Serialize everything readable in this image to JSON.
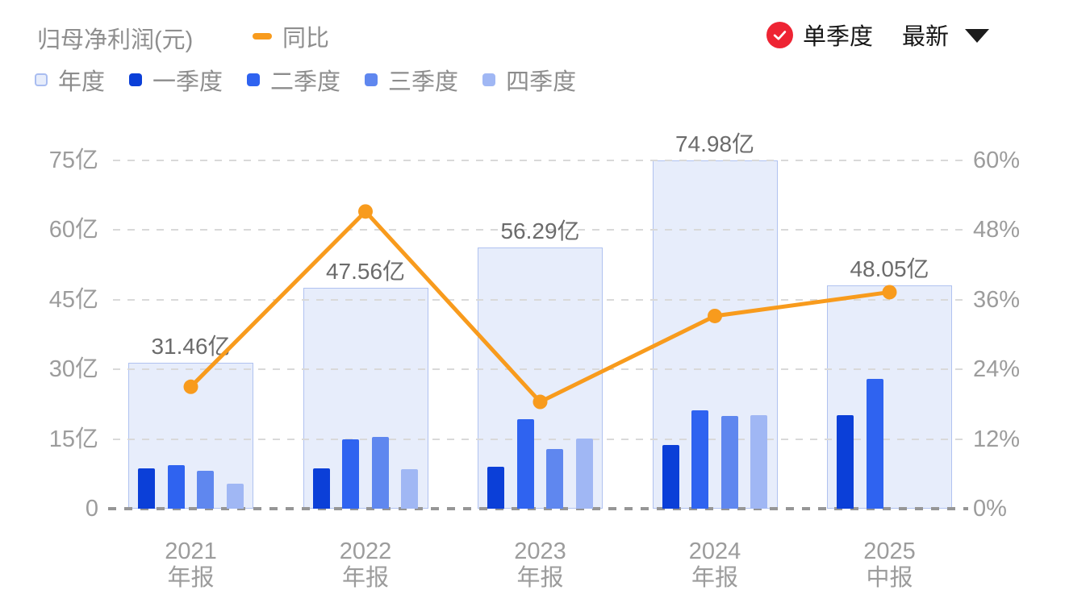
{
  "header": {
    "title": "归母净利润(元)",
    "line_legend": "同比",
    "mode_badge": "单季度",
    "latest": "最新",
    "badge_color": "#ee2433",
    "check_icon": "check-icon",
    "chevron_icon": "chevron-down-icon"
  },
  "legend": {
    "items": [
      {
        "label": "年度",
        "color": "#e7edfb",
        "border": "#a9bdf0"
      },
      {
        "label": "一季度",
        "color": "#0b3fd8",
        "border": null
      },
      {
        "label": "二季度",
        "color": "#2f63f0",
        "border": null
      },
      {
        "label": "三季度",
        "color": "#5f87ef",
        "border": null
      },
      {
        "label": "四季度",
        "color": "#a0b7f4",
        "border": null
      }
    ]
  },
  "chart_data": {
    "type": "bar",
    "title": "归母净利润(元)",
    "categories": [
      {
        "year": "2021",
        "report": "年报"
      },
      {
        "year": "2022",
        "report": "年报"
      },
      {
        "year": "2023",
        "report": "年报"
      },
      {
        "year": "2024",
        "report": "年报"
      },
      {
        "year": "2025",
        "report": "中报"
      }
    ],
    "annual_series": {
      "name": "年度",
      "values_yi": [
        31.46,
        47.56,
        56.29,
        74.98,
        48.05
      ],
      "labels": [
        "31.46亿",
        "47.56亿",
        "56.29亿",
        "74.98亿",
        "48.05亿"
      ],
      "fill": "#e7edfb",
      "border": "#b0c2f0"
    },
    "quarter_series": [
      {
        "name": "一季度",
        "color": "#0b3fd8",
        "values_yi": [
          8.6,
          8.7,
          9.1,
          13.8,
          20.1
        ]
      },
      {
        "name": "二季度",
        "color": "#2f63f0",
        "values_yi": [
          9.3,
          15.0,
          19.2,
          21.1,
          27.9
        ]
      },
      {
        "name": "三季度",
        "color": "#5f87ef",
        "values_yi": [
          8.2,
          15.4,
          12.9,
          20.0,
          null
        ]
      },
      {
        "name": "四季度",
        "color": "#a0b7f4",
        "values_yi": [
          5.4,
          8.5,
          15.1,
          20.1,
          null
        ]
      }
    ],
    "line_series": {
      "name": "同比",
      "values_pct": [
        21.0,
        51.2,
        18.4,
        33.2,
        37.3
      ],
      "color": "#f89b1d"
    },
    "left_axis": {
      "unit": "亿",
      "min": 0,
      "max": 75,
      "ticks": [
        {
          "label": "75亿",
          "value": 75
        },
        {
          "label": "60亿",
          "value": 60
        },
        {
          "label": "45亿",
          "value": 45
        },
        {
          "label": "30亿",
          "value": 30
        },
        {
          "label": "15亿",
          "value": 15
        },
        {
          "label": "0",
          "value": 0
        }
      ]
    },
    "right_axis": {
      "unit": "%",
      "min": 0,
      "max": 60,
      "ticks": [
        {
          "label": "60%",
          "value": 60
        },
        {
          "label": "48%",
          "value": 48
        },
        {
          "label": "36%",
          "value": 36
        },
        {
          "label": "24%",
          "value": 24
        },
        {
          "label": "12%",
          "value": 12
        },
        {
          "label": "0%",
          "value": 0
        }
      ]
    },
    "grid": "dashed",
    "legend_position": "top"
  }
}
